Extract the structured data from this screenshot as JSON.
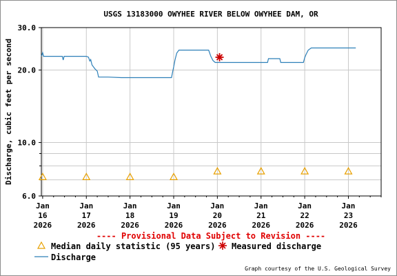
{
  "chart_data": {
    "type": "line",
    "title": "USGS 13183000 OWYHEE RIVER BELOW OWYHEE DAM, OR",
    "ylabel": "Discharge, cubic feet per second",
    "xlabel": "",
    "y_scale": "log",
    "ylim": [
      6.0,
      30.0
    ],
    "y_tick_labels": [
      "30.0",
      "20.0",
      "10.0",
      "6.0"
    ],
    "y_tick_values": [
      30,
      20,
      10,
      6
    ],
    "y_minor_grid": [
      7,
      8,
      9
    ],
    "x_range_days": [
      15.97,
      23.75
    ],
    "x_tick_labels": [
      {
        "day": 16,
        "lines": [
          "Jan",
          "16",
          "2026"
        ]
      },
      {
        "day": 17,
        "lines": [
          "Jan",
          "17",
          "2026"
        ]
      },
      {
        "day": 18,
        "lines": [
          "Jan",
          "18",
          "2026"
        ]
      },
      {
        "day": 19,
        "lines": [
          "Jan",
          "19",
          "2026"
        ]
      },
      {
        "day": 20,
        "lines": [
          "Jan",
          "20",
          "2026"
        ]
      },
      {
        "day": 21,
        "lines": [
          "Jan",
          "21",
          "2026"
        ]
      },
      {
        "day": 22,
        "lines": [
          "Jan",
          "22",
          "2026"
        ]
      },
      {
        "day": 23,
        "lines": [
          "Jan",
          "23",
          "2026"
        ]
      }
    ],
    "grid": true,
    "series": [
      {
        "name": "Discharge",
        "color": "#2c7fb8",
        "points": [
          [
            15.97,
            22.8
          ],
          [
            16.0,
            23.6
          ],
          [
            16.02,
            22.8
          ],
          [
            16.45,
            22.8
          ],
          [
            16.47,
            22.0
          ],
          [
            16.49,
            22.8
          ],
          [
            17.0,
            22.8
          ],
          [
            17.05,
            22.6
          ],
          [
            17.08,
            21.8
          ],
          [
            17.1,
            22.1
          ],
          [
            17.13,
            21.0
          ],
          [
            17.2,
            20.2
          ],
          [
            17.25,
            19.8
          ],
          [
            17.28,
            18.7
          ],
          [
            17.5,
            18.7
          ],
          [
            17.8,
            18.6
          ],
          [
            18.5,
            18.6
          ],
          [
            18.95,
            18.6
          ],
          [
            18.98,
            19.8
          ],
          [
            19.0,
            20.6
          ],
          [
            19.03,
            22.0
          ],
          [
            19.07,
            23.5
          ],
          [
            19.12,
            24.2
          ],
          [
            19.8,
            24.2
          ],
          [
            19.85,
            22.8
          ],
          [
            19.9,
            21.9
          ],
          [
            19.95,
            21.5
          ],
          [
            20.7,
            21.5
          ],
          [
            21.15,
            21.5
          ],
          [
            21.17,
            22.3
          ],
          [
            21.43,
            22.3
          ],
          [
            21.45,
            21.5
          ],
          [
            21.97,
            21.5
          ],
          [
            22.0,
            22.5
          ],
          [
            22.03,
            23.2
          ],
          [
            22.08,
            24.2
          ],
          [
            22.15,
            24.7
          ],
          [
            23.17,
            24.7
          ]
        ]
      }
    ],
    "median_points": {
      "name": "Median daily statistic (95 years)",
      "color": "#e8a000",
      "points": [
        [
          16,
          7.2
        ],
        [
          17,
          7.2
        ],
        [
          18,
          7.2
        ],
        [
          19,
          7.2
        ],
        [
          20,
          7.6
        ],
        [
          21,
          7.6
        ],
        [
          22,
          7.6
        ],
        [
          23,
          7.6
        ]
      ]
    },
    "measured_points": {
      "name": "Measured discharge",
      "color": "#cc0000",
      "points": [
        [
          20.05,
          22.6
        ]
      ]
    }
  },
  "provisional_text": "---- Provisional Data Subject to Revision ----",
  "legend": {
    "median_label": "Median daily statistic (95 years)",
    "measured_label": "Measured discharge",
    "discharge_label": "Discharge"
  },
  "credit": "Graph courtesy of the U.S. Geological Survey"
}
